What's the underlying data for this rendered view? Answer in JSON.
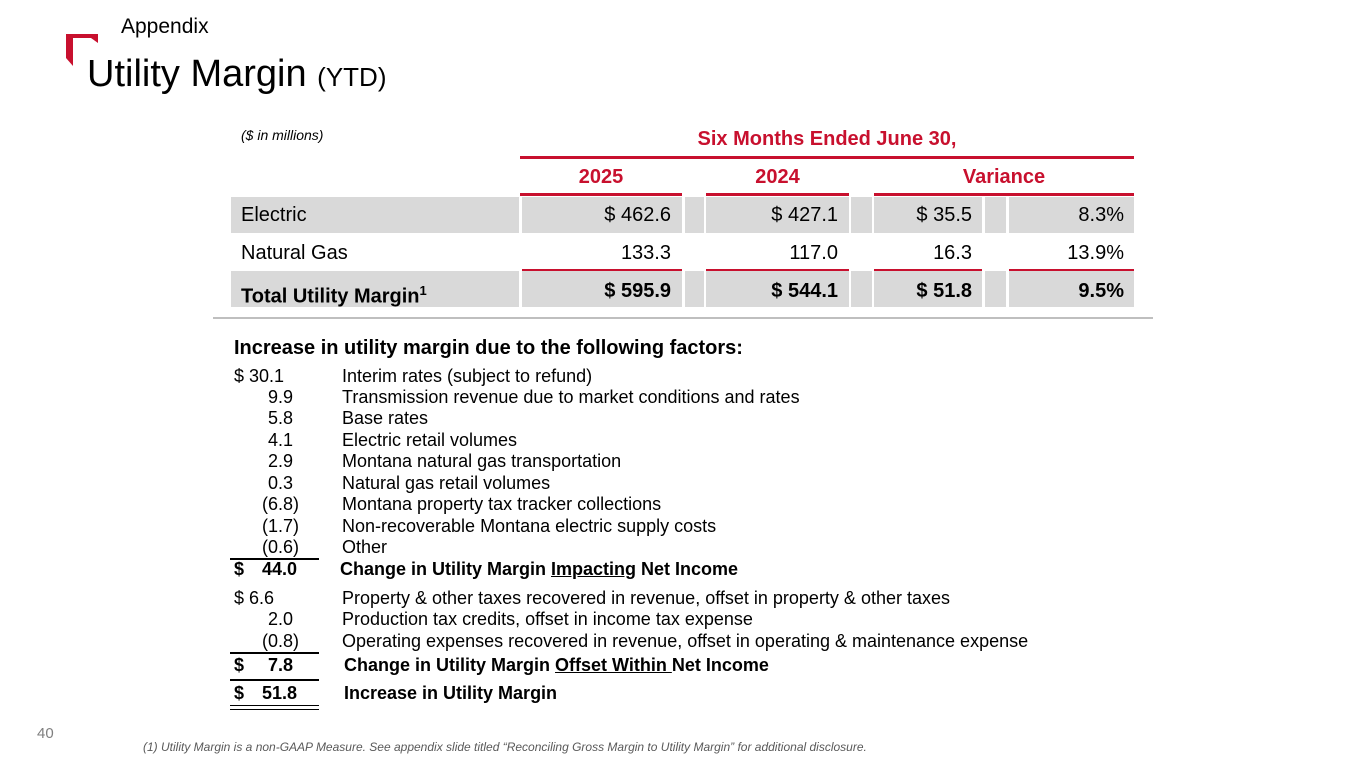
{
  "header": {
    "section": "Appendix",
    "title": "Utility Margin",
    "title_suffix": "(YTD)"
  },
  "table": {
    "units_note": "($ in millions)",
    "period": "Six Months Ended June 30,",
    "columns": [
      "2025",
      "2024",
      "Variance"
    ],
    "rows": [
      {
        "label": "Electric",
        "y2025": "$ 462.6",
        "y2024": "$ 427.1",
        "var_amt": "$ 35.5",
        "var_pct": "8.3%"
      },
      {
        "label": "Natural Gas",
        "y2025": "133.3",
        "y2024": "117.0",
        "var_amt": "16.3",
        "var_pct": "13.9%"
      }
    ],
    "total": {
      "label": "Total Utility Margin",
      "sup": "1",
      "y2025": "$ 595.9",
      "y2024": "$ 544.1",
      "var_amt": "$ 51.8",
      "var_pct": "9.5%"
    }
  },
  "factors": {
    "title": "Increase in utility margin due to the following factors:",
    "group1": [
      {
        "amount": "$  30.1",
        "desc": "Interim rates (subject to refund)"
      },
      {
        "amount": "9.9",
        "desc": "Transmission revenue due to market conditions and rates"
      },
      {
        "amount": "5.8",
        "desc": "Base rates"
      },
      {
        "amount": "4.1",
        "desc": "Electric retail volumes"
      },
      {
        "amount": "2.9",
        "desc": "Montana natural gas transportation"
      },
      {
        "amount": "0.3",
        "desc": "Natural gas retail volumes"
      },
      {
        "amount": "(6.8)",
        "desc": "Montana property tax tracker collections"
      },
      {
        "amount": "(1.7)",
        "desc": "Non-recoverable Montana electric supply costs"
      },
      {
        "amount": "(0.6)",
        "desc": "Other"
      }
    ],
    "subtotal1": {
      "currency": "$",
      "amount": "44.0",
      "pre": "Change in Utility Margin ",
      "underlined": "Impacting",
      "post": " Net Income"
    },
    "group2": [
      {
        "amount": "$    6.6",
        "desc": "Property & other taxes recovered in revenue, offset in property & other taxes"
      },
      {
        "amount": "2.0",
        "desc": "Production tax credits, offset in income tax expense"
      },
      {
        "amount": "(0.8)",
        "desc": "Operating expenses recovered in revenue, offset in operating & maintenance expense"
      }
    ],
    "subtotal2": {
      "currency": "$",
      "amount": "7.8",
      "pre": "Change in Utility Margin ",
      "underlined": "Offset Within ",
      "post": "Net Income"
    },
    "total": {
      "currency": "$",
      "amount": "51.8",
      "desc": "Increase in Utility Margin"
    }
  },
  "footer": {
    "page_number": "40",
    "footnote": "(1) Utility Margin is a non-GAAP Measure. See appendix slide titled “Reconciling Gross Margin to Utility Margin” for additional disclosure."
  },
  "colors": {
    "accent": "#c8102e",
    "row_fill": "#d9d9d9"
  }
}
